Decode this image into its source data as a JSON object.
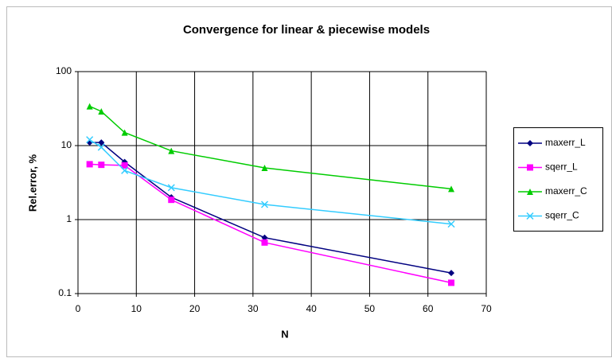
{
  "chart_data": {
    "type": "line",
    "title": "Convergence for linear & piecewise models",
    "xlabel": "N",
    "ylabel": "Rel.error, %",
    "x": [
      2,
      4,
      8,
      16,
      32,
      64
    ],
    "series": [
      {
        "name": "maxerr_L",
        "color": "#000080",
        "marker": "diamond",
        "values": [
          11,
          11,
          6,
          2.0,
          0.57,
          0.19
        ]
      },
      {
        "name": "sqerr_L",
        "color": "#ff00ff",
        "marker": "square",
        "values": [
          5.6,
          5.5,
          5.4,
          1.85,
          0.49,
          0.14
        ]
      },
      {
        "name": "maxerr_C",
        "color": "#00cc00",
        "marker": "triangle",
        "values": [
          34,
          29,
          15,
          8.5,
          5.0,
          2.6
        ]
      },
      {
        "name": "sqerr_C",
        "color": "#33ccff",
        "marker": "x",
        "values": [
          12,
          9.5,
          4.6,
          2.7,
          1.6,
          0.87
        ]
      }
    ],
    "xlim": [
      0,
      70
    ],
    "xticks": [
      0,
      10,
      20,
      30,
      40,
      50,
      60,
      70
    ],
    "ylim": [
      0.1,
      100
    ],
    "yticks": [
      0.1,
      1,
      10,
      100
    ],
    "log_scale": "y",
    "grid": true,
    "legend": "right"
  }
}
